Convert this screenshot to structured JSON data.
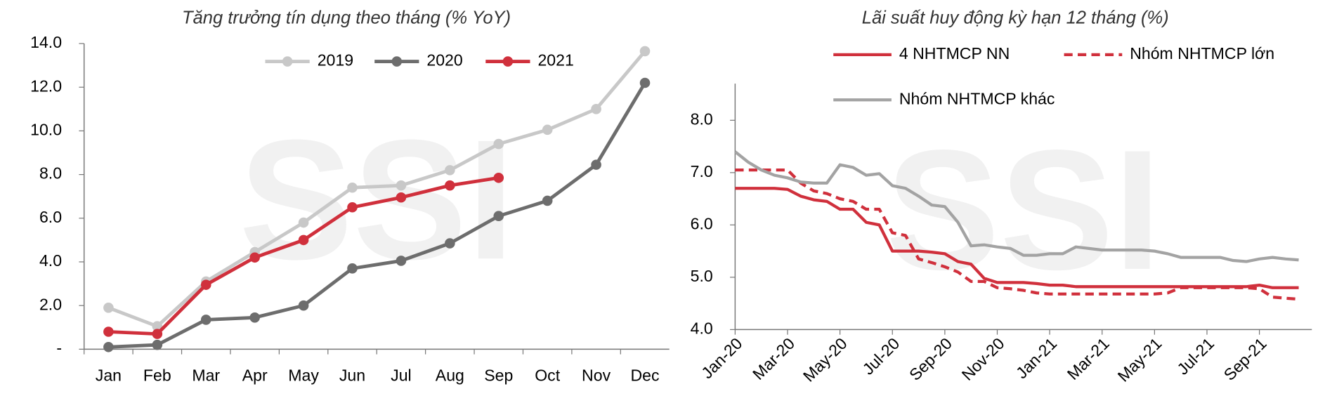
{
  "chart_data": [
    {
      "type": "line",
      "title": "Tăng trưởng tín dụng theo tháng (% YoY)",
      "watermark": "SSI",
      "categories": [
        "Jan",
        "Feb",
        "Mar",
        "Apr",
        "May",
        "Jun",
        "Jul",
        "Aug",
        "Sep",
        "Oct",
        "Nov",
        "Dec"
      ],
      "series": [
        {
          "name": "2019",
          "color": "#c8c8c8",
          "values": [
            1.9,
            1.05,
            3.1,
            4.45,
            5.8,
            7.4,
            7.5,
            8.2,
            9.4,
            10.05,
            11.0,
            13.65
          ]
        },
        {
          "name": "2020",
          "color": "#6d6d6d",
          "values": [
            0.1,
            0.2,
            1.35,
            1.45,
            2.0,
            3.7,
            4.05,
            4.85,
            6.1,
            6.8,
            8.45,
            12.2
          ]
        },
        {
          "name": "2021",
          "color": "#d0303c",
          "values": [
            0.8,
            0.7,
            2.95,
            4.2,
            5.0,
            6.5,
            6.95,
            7.5,
            7.85,
            null,
            null,
            null
          ]
        }
      ],
      "markers": true,
      "ylim": [
        0,
        14
      ],
      "yticks": [
        {
          "value": 0,
          "label": "-"
        },
        {
          "value": 2,
          "label": "2.0"
        },
        {
          "value": 4,
          "label": "4.0"
        },
        {
          "value": 6,
          "label": "6.0"
        },
        {
          "value": 8,
          "label": "8.0"
        },
        {
          "value": 10,
          "label": "10.0"
        },
        {
          "value": 12,
          "label": "12.0"
        },
        {
          "value": 14,
          "label": "14.0"
        }
      ]
    },
    {
      "type": "line",
      "title": "Lãi suất huy động kỳ hạn 12 tháng (%)",
      "watermark": "SSI",
      "categories": [
        "Jan-20",
        null,
        null,
        null,
        "Mar-20",
        null,
        null,
        null,
        "May-20",
        null,
        null,
        null,
        "Jul-20",
        null,
        null,
        null,
        "Sep-20",
        null,
        null,
        null,
        "Nov-20",
        null,
        null,
        null,
        "Jan-21",
        null,
        null,
        null,
        "Mar-21",
        null,
        null,
        null,
        "May-21",
        null,
        null,
        null,
        "Jul-21",
        null,
        null,
        null,
        "Sep-21",
        null,
        null,
        null
      ],
      "series": [
        {
          "name": "4 NHTMCP NN",
          "color": "#d0303c",
          "values": [
            6.7,
            6.7,
            6.7,
            6.7,
            6.68,
            6.55,
            6.48,
            6.45,
            6.3,
            6.3,
            6.05,
            6.0,
            5.5,
            5.5,
            5.5,
            5.48,
            5.45,
            5.3,
            5.25,
            4.98,
            4.9,
            4.9,
            4.9,
            4.88,
            4.85,
            4.85,
            4.82,
            4.82,
            4.82,
            4.82,
            4.82,
            4.82,
            4.82,
            4.82,
            4.82,
            4.82,
            4.82,
            4.82,
            4.82,
            4.82,
            4.85,
            4.8,
            4.8,
            4.8
          ]
        },
        {
          "name": "Nhóm NHTMCP lớn",
          "color": "#d0303c",
          "dash": true,
          "values": [
            7.05,
            7.05,
            7.05,
            7.05,
            7.05,
            6.8,
            6.65,
            6.6,
            6.5,
            6.45,
            6.3,
            6.3,
            5.85,
            5.8,
            5.35,
            5.28,
            5.2,
            5.1,
            4.92,
            4.92,
            4.8,
            4.78,
            4.75,
            4.7,
            4.68,
            4.68,
            4.68,
            4.68,
            4.68,
            4.68,
            4.68,
            4.68,
            4.68,
            4.7,
            4.8,
            4.8,
            4.8,
            4.8,
            4.8,
            4.8,
            4.78,
            4.62,
            4.6,
            4.58
          ]
        },
        {
          "name": "Nhóm NHTMCP khác",
          "color": "#a3a3a3",
          "values": [
            7.4,
            7.2,
            7.05,
            6.95,
            6.9,
            6.82,
            6.8,
            6.8,
            7.15,
            7.1,
            6.95,
            6.98,
            6.75,
            6.7,
            6.55,
            6.38,
            6.35,
            6.05,
            5.6,
            5.62,
            5.58,
            5.55,
            5.42,
            5.42,
            5.45,
            5.45,
            5.58,
            5.55,
            5.52,
            5.52,
            5.52,
            5.52,
            5.5,
            5.45,
            5.38,
            5.38,
            5.38,
            5.38,
            5.32,
            5.3,
            5.35,
            5.38,
            5.35,
            5.33
          ]
        }
      ],
      "markers": false,
      "ylim": [
        4,
        8.7
      ],
      "yticks": [
        {
          "value": 4,
          "label": "4.0"
        },
        {
          "value": 5,
          "label": "5.0"
        },
        {
          "value": 6,
          "label": "6.0"
        },
        {
          "value": 7,
          "label": "7.0"
        },
        {
          "value": 8,
          "label": "8.0"
        }
      ]
    }
  ]
}
